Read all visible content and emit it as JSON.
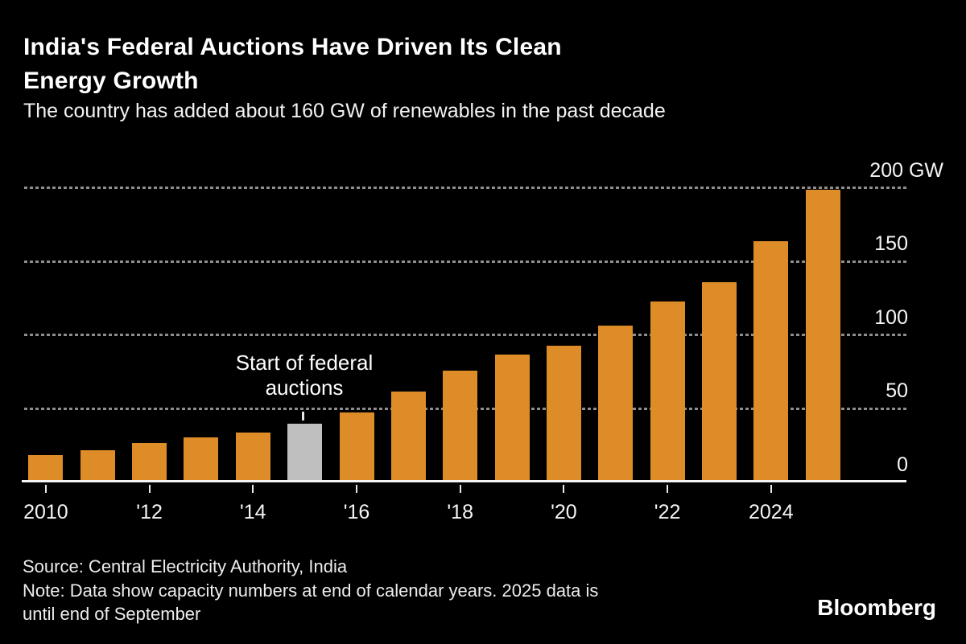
{
  "header": {
    "title_lines": [
      "India's Federal Auctions Have Driven Its Clean",
      "Energy Growth"
    ],
    "subtitle": "The country has added about 160 GW of renewables in the past decade"
  },
  "chart_data": {
    "type": "bar",
    "title": "India's Federal Auctions Have Driven Its Clean Energy Growth",
    "subtitle": "The country has added about 160 GW of renewables in the past decade",
    "unit": "GW",
    "categories": [
      2010,
      2011,
      2012,
      2013,
      2014,
      2015,
      2016,
      2017,
      2018,
      2019,
      2020,
      2021,
      2022,
      2023,
      2024,
      2025
    ],
    "values": [
      17,
      20,
      25,
      29,
      32,
      38,
      46,
      60,
      74,
      85,
      91,
      105,
      121,
      134,
      162,
      197
    ],
    "bar_color": "#DD8C28",
    "highlight_index": 5,
    "highlight_color": "#BFBFBF",
    "highlight_label": "Start of federal auctions",
    "x_tick_labels": [
      "2010",
      "'12",
      "'14",
      "'16",
      "'18",
      "'20",
      "'22",
      "2024"
    ],
    "x_tick_years": [
      2010,
      2012,
      2014,
      2016,
      2018,
      2020,
      2022,
      2024
    ],
    "y_ticks": [
      0,
      50,
      100,
      150,
      200
    ],
    "y_top_label": "200 GW",
    "ylim": [
      0,
      200
    ],
    "grid": "horizontal-dotted",
    "legend": "none"
  },
  "footer": {
    "source": "Source: Central Electricity Authority, India",
    "note_lines": [
      "Note: Data show capacity numbers at end of calendar years. 2025 data is",
      "until end of September"
    ],
    "brand": "Bloomberg"
  },
  "colors": {
    "background": "#000000",
    "title_text": "#FFFFFF",
    "muted_text": "#EDEDED",
    "bar": "#DD8C28",
    "highlight_bar": "#BFBFBF",
    "gridline": "#8E8E8E",
    "axis": "#F5F5F5"
  }
}
